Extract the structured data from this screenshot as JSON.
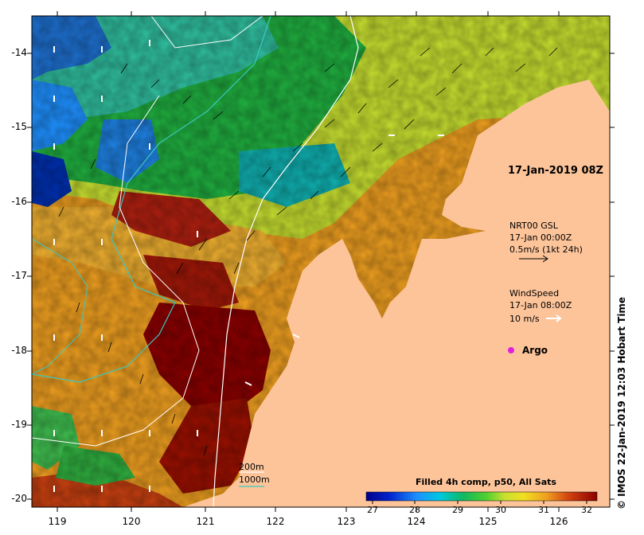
{
  "map": {
    "timestamp_label": "17-Jan-2019 08Z",
    "y_axis_ticks": [
      "-14",
      "-15",
      "-16",
      "-17",
      "-18",
      "-19",
      "-20"
    ],
    "x_axis_ticks": [
      "119",
      "120",
      "121",
      "122",
      "123",
      "124",
      "125",
      "126"
    ],
    "current_legend": {
      "line1": "NRT00 GSL",
      "line2": "17-Jan 00:00Z",
      "line3": "0.5m/s (1kt 24h)"
    },
    "wind_legend": {
      "line1": "WindSpeed",
      "line2": "17-Jan 08:00Z",
      "line3": "10 m/s"
    },
    "argo_label": "Argo",
    "isobath_legend": {
      "line1": "200m",
      "line2": "1000m"
    },
    "colorbar": {
      "title": "Filled 4h comp, p50, All Sats",
      "ticks": [
        "27",
        "28",
        "29",
        "30",
        "31",
        "32"
      ]
    },
    "credit": "© IMOS 22-Jan-2019 12:03 Hobart Time",
    "colors": {
      "land": "#fdc49a",
      "argo": "#e020e0",
      "isobath_200": "#ffffff",
      "isobath_1000": "#3cc8c0"
    }
  }
}
